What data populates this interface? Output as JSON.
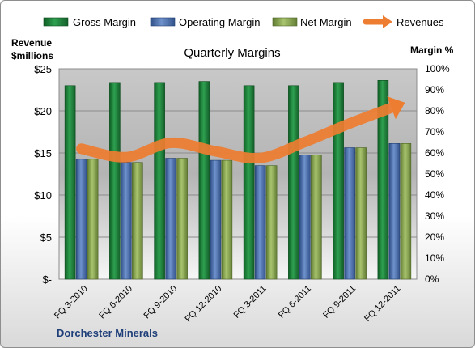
{
  "chart_data": {
    "type": "bar",
    "title": "Quarterly Margins",
    "company": "Dorchester Minerals",
    "left_axis_label": [
      "Revenue",
      "$millions"
    ],
    "right_axis_label": "Margin %",
    "left_ticks": [
      "$-",
      "$5",
      "$10",
      "$15",
      "$20",
      "$25"
    ],
    "left_ylim": [
      0,
      25
    ],
    "right_ticks": [
      "0%",
      "10%",
      "20%",
      "30%",
      "40%",
      "50%",
      "60%",
      "70%",
      "80%",
      "90%",
      "100%"
    ],
    "right_ylim": [
      0,
      100
    ],
    "categories": [
      "FQ 3-2010",
      "FQ 6-2010",
      "FQ 9-2010",
      "FQ 12-2010",
      "FQ 3-2011",
      "FQ 6-2011",
      "FQ 9-2011",
      "FQ 12-2011"
    ],
    "series": [
      {
        "name": "Gross Margin",
        "axis": "right",
        "kind": "bar",
        "color": "#1f8a3c",
        "values": [
          92,
          93.5,
          93.5,
          94,
          92,
          92,
          93.5,
          94.5
        ]
      },
      {
        "name": "Operating Margin",
        "axis": "right",
        "kind": "bar",
        "color": "#4a6fb0",
        "values": [
          57,
          55.5,
          57.5,
          56.5,
          54,
          59,
          62.5,
          64.5
        ]
      },
      {
        "name": "Net Margin",
        "axis": "right",
        "kind": "bar",
        "color": "#8bab52",
        "values": [
          57,
          55.5,
          57.5,
          56.5,
          54,
          59,
          62.5,
          64.5
        ]
      },
      {
        "name": "Revenues",
        "axis": "left",
        "kind": "line",
        "color": "#ed7d31",
        "values": [
          15.5,
          14.5,
          16.2,
          15.2,
          14.4,
          16.3,
          18.5,
          20.5
        ]
      }
    ],
    "grid": true,
    "legend_position": "top"
  }
}
